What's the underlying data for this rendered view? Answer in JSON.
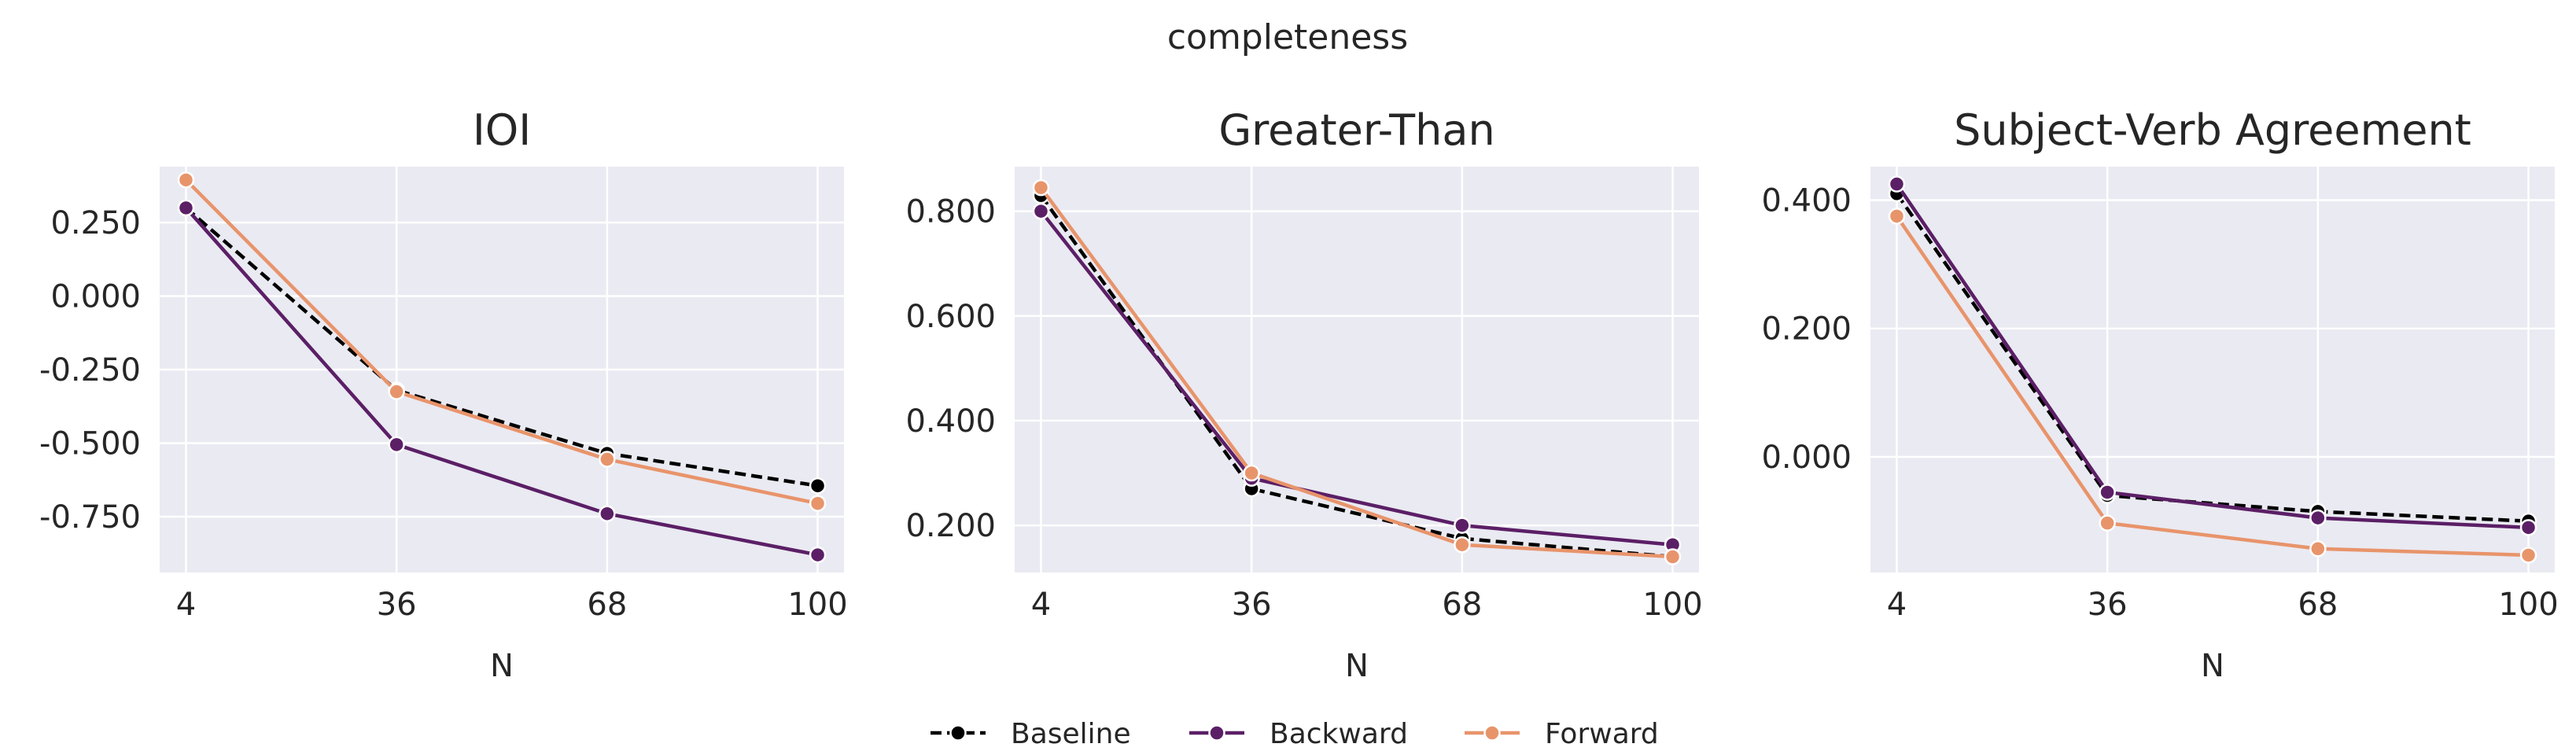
{
  "figure": {
    "suptitle": "completeness",
    "legend": [
      "Baseline",
      "Backward",
      "Forward"
    ]
  },
  "colors": {
    "Baseline": "#000000",
    "Backward": "#5b1f66",
    "Forward": "#e8946b",
    "background": "#eaeaf2",
    "grid": "#ffffff"
  },
  "chart_data": [
    {
      "type": "line",
      "title": "IOI",
      "xlabel": "N",
      "ylabel": "",
      "x": [
        4,
        36,
        68,
        100
      ],
      "xticks": [
        "4",
        "36",
        "68",
        "100"
      ],
      "xlim": [
        0,
        104
      ],
      "ylim": [
        -0.94,
        0.44
      ],
      "yticks": [
        0.25,
        0.0,
        -0.25,
        -0.5,
        -0.75
      ],
      "ytick_labels": [
        "0.250",
        "0.000",
        "-0.250",
        "-0.500",
        "-0.750"
      ],
      "grid": true,
      "series": [
        {
          "name": "Baseline",
          "style": "dashed",
          "values": [
            0.3,
            -0.32,
            -0.535,
            -0.645
          ]
        },
        {
          "name": "Backward",
          "style": "solid",
          "values": [
            0.3,
            -0.505,
            -0.74,
            -0.88
          ]
        },
        {
          "name": "Forward",
          "style": "solid",
          "values": [
            0.395,
            -0.325,
            -0.555,
            -0.705
          ]
        }
      ]
    },
    {
      "type": "line",
      "title": "Greater-Than",
      "xlabel": "N",
      "ylabel": "",
      "x": [
        4,
        36,
        68,
        100
      ],
      "xticks": [
        "4",
        "36",
        "68",
        "100"
      ],
      "xlim": [
        0,
        104
      ],
      "ylim": [
        0.11,
        0.885
      ],
      "yticks": [
        0.8,
        0.6,
        0.4,
        0.2
      ],
      "ytick_labels": [
        "0.800",
        "0.600",
        "0.400",
        "0.200"
      ],
      "grid": true,
      "series": [
        {
          "name": "Baseline",
          "style": "dashed",
          "values": [
            0.83,
            0.27,
            0.175,
            0.14
          ]
        },
        {
          "name": "Backward",
          "style": "solid",
          "values": [
            0.8,
            0.29,
            0.2,
            0.163
          ]
        },
        {
          "name": "Forward",
          "style": "solid",
          "values": [
            0.845,
            0.3,
            0.163,
            0.14
          ]
        }
      ]
    },
    {
      "type": "line",
      "title": "Subject-Verb Agreement",
      "xlabel": "N",
      "ylabel": "",
      "x": [
        4,
        36,
        68,
        100
      ],
      "xticks": [
        "4",
        "36",
        "68",
        "100"
      ],
      "xlim": [
        0,
        104
      ],
      "ylim": [
        -0.18,
        0.452
      ],
      "yticks": [
        0.4,
        0.2,
        0.0
      ],
      "ytick_labels": [
        "0.400",
        "0.200",
        "0.000"
      ],
      "grid": true,
      "series": [
        {
          "name": "Baseline",
          "style": "dashed",
          "values": [
            0.41,
            -0.06,
            -0.085,
            -0.1
          ]
        },
        {
          "name": "Backward",
          "style": "solid",
          "values": [
            0.425,
            -0.055,
            -0.095,
            -0.11
          ]
        },
        {
          "name": "Forward",
          "style": "solid",
          "values": [
            0.375,
            -0.103,
            -0.143,
            -0.153
          ]
        }
      ]
    }
  ]
}
